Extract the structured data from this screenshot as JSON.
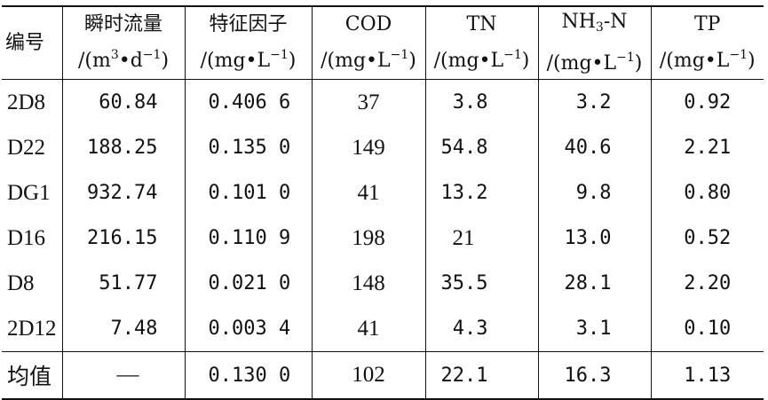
{
  "headers": {
    "id": "编号",
    "flow": {
      "name": "瞬时流量",
      "unit_prefix": "/(m",
      "unit_sup1": "3",
      "unit_mid": "•d",
      "unit_sup2": "−1",
      "unit_suffix": ")"
    },
    "factor": {
      "name": "特征因子",
      "unit_prefix": "/(mg•L",
      "unit_sup": "−1",
      "unit_suffix": ")"
    },
    "cod": {
      "name": "COD",
      "unit_prefix": "/(mg•L",
      "unit_sup": "−1",
      "unit_suffix": ")"
    },
    "tn": {
      "name": "TN",
      "unit_prefix": "/(mg•L",
      "unit_sup": "−1",
      "unit_suffix": ")"
    },
    "nh3n": {
      "name_prefix": "NH",
      "name_sub": "3",
      "name_suffix": "-N",
      "unit_prefix": "/(mg•L",
      "unit_sup": "−1",
      "unit_suffix": ")"
    },
    "tp": {
      "name": "TP",
      "unit_prefix": "/(mg•L",
      "unit_sup": "−1",
      "unit_suffix": ")"
    }
  },
  "rows": [
    {
      "id": "2D8",
      "flow": "60.84",
      "factor": "0.406 6",
      "cod": "37",
      "tn": "3.8",
      "nh3n": "3.2",
      "tp": "0.92"
    },
    {
      "id": "D22",
      "flow": "188.25",
      "factor": "0.135 0",
      "cod": "149",
      "tn": "54.8",
      "nh3n": "40.6",
      "tp": "2.21"
    },
    {
      "id": "DG1",
      "flow": "932.74",
      "factor": "0.101 0",
      "cod": "41",
      "tn": "13.2",
      "nh3n": "9.8",
      "tp": "0.80"
    },
    {
      "id": "D16",
      "flow": "216.15",
      "factor": "0.110 9",
      "cod": "198",
      "tn": "21",
      "nh3n": "13.0",
      "tp": "0.52"
    },
    {
      "id": "D8",
      "flow": "51.77",
      "factor": "0.021 0",
      "cod": "148",
      "tn": "35.5",
      "nh3n": "28.1",
      "tp": "2.20"
    },
    {
      "id": "2D12",
      "flow": "7.48",
      "factor": "0.003 4",
      "cod": "41",
      "tn": "4.3",
      "nh3n": "3.1",
      "tp": "0.10"
    }
  ],
  "mean": {
    "id": "均值",
    "flow": "—",
    "factor": "0.130 0",
    "cod": "102",
    "tn": "22.1",
    "nh3n": "16.3",
    "tp": "1.13"
  }
}
